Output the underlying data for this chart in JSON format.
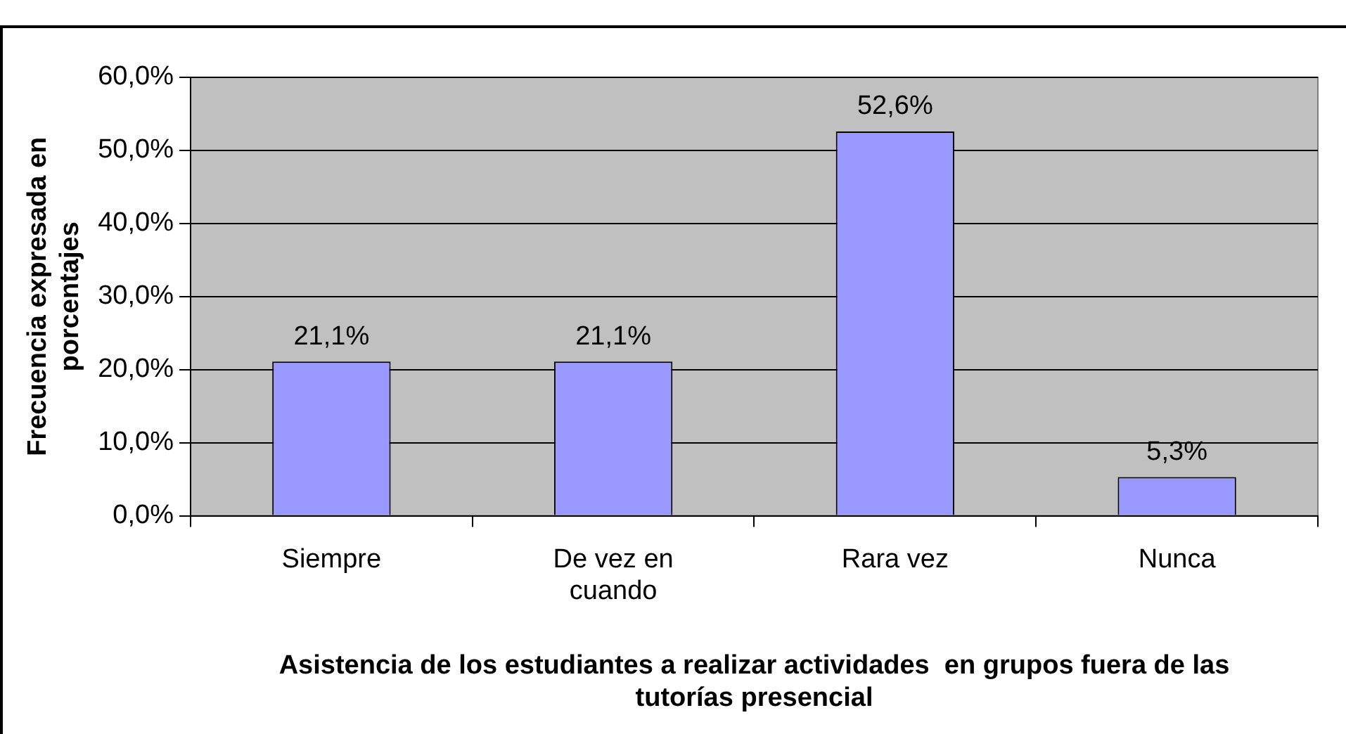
{
  "chart_data": {
    "type": "bar",
    "xlabel": "Asistencia de los estudiantes a realizar actividades  en grupos fuera de las tutorías presencial",
    "ylabel": "Frecuencia expresada en porcentajes",
    "categories": [
      "Siempre",
      "De vez en cuando",
      "Rara vez",
      "Nunca"
    ],
    "values": [
      21.1,
      21.1,
      52.6,
      5.3
    ],
    "value_labels": [
      "21,1%",
      "21,1%",
      "52,6%",
      "5,3%"
    ],
    "color": "#9999ff",
    "ylim": [
      0,
      60
    ],
    "yticks": [
      {
        "value": 0,
        "label": "0,0%"
      },
      {
        "value": 10,
        "label": "10,0%"
      },
      {
        "value": 20,
        "label": "20,0%"
      },
      {
        "value": 30,
        "label": "30,0%"
      },
      {
        "value": 40,
        "label": "40,0%"
      },
      {
        "value": 50,
        "label": "50,0%"
      },
      {
        "value": 60,
        "label": "60,0%"
      }
    ],
    "grid": "y",
    "legend": false
  }
}
